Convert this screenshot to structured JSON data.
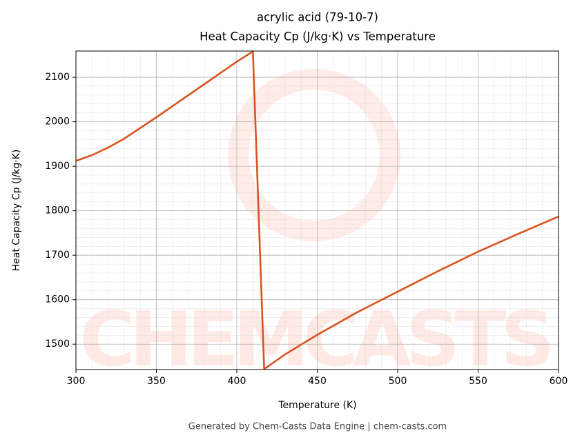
{
  "chart_data": {
    "type": "line",
    "title": "acrylic acid (79-10-7)",
    "subtitle": "Heat Capacity Cp (J/kg·K) vs Temperature",
    "x_label": "Temperature (K)",
    "y_label": "Heat Capacity Cp (J/kg·K)",
    "footer": "Generated by Chem-Casts Data Engine | chem-casts.com",
    "watermark": "CHEMCASTS",
    "x": [
      300,
      310,
      320,
      330,
      340,
      350,
      360,
      370,
      380,
      390,
      400,
      410,
      417,
      430,
      450,
      475,
      500,
      525,
      550,
      575,
      600
    ],
    "series": [
      {
        "name": "Cp",
        "color": "#d9531e",
        "values": [
          1912,
          1925,
          1942,
          1962,
          1986,
          2010,
          2035,
          2060,
          2085,
          2110,
          2135,
          2158,
          1444,
          1477,
          1521,
          1572,
          1618,
          1664,
          1708,
          1748,
          1787
        ]
      }
    ],
    "xlim": [
      300,
      600
    ],
    "xticks": [
      300,
      350,
      400,
      450,
      500,
      550,
      600
    ],
    "ylim": [
      1443,
      2159
    ],
    "yticks": [
      1500,
      1600,
      1700,
      1800,
      1900,
      2000,
      2100
    ],
    "grid": true
  }
}
